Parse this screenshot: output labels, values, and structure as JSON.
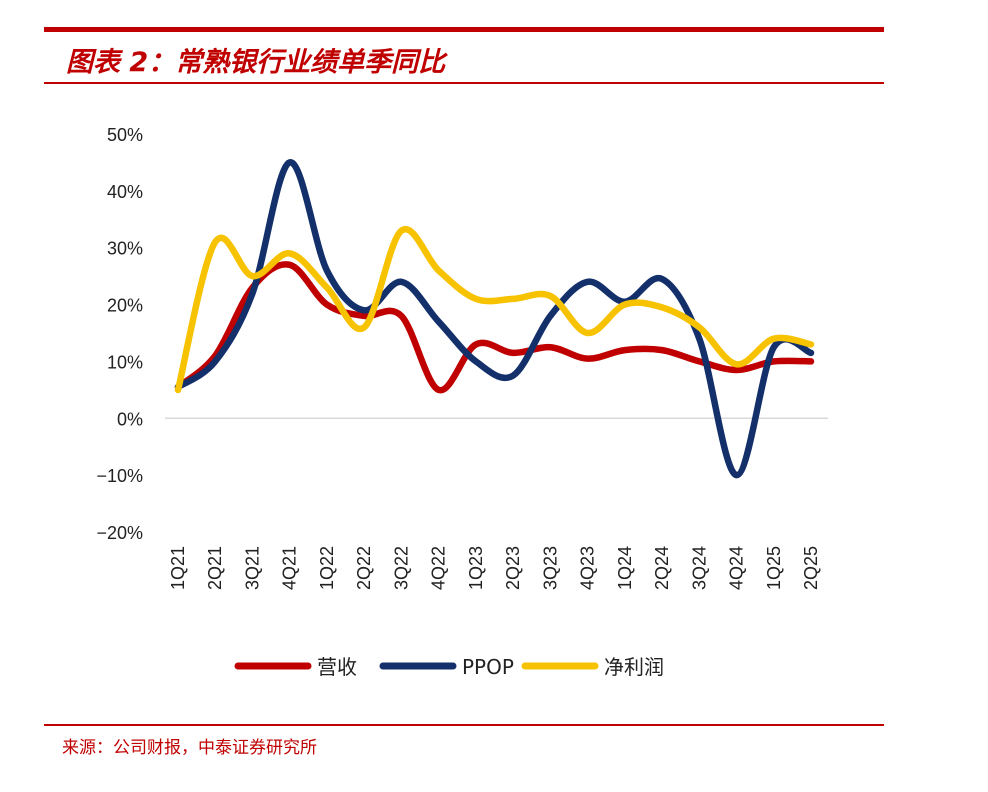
{
  "header": {
    "title": "图表 2：常熟银行业绩单季同比"
  },
  "footer": {
    "source": "来源：公司财报，中泰证券研究所"
  },
  "colors": {
    "rule": "#c00000"
  },
  "chart_data": {
    "type": "line",
    "categories": [
      "1Q21",
      "2Q21",
      "3Q21",
      "4Q21",
      "1Q22",
      "2Q22",
      "3Q22",
      "4Q22",
      "1Q23",
      "2Q23",
      "3Q23",
      "4Q23",
      "1Q24",
      "2Q24",
      "3Q24",
      "4Q24",
      "1Q25",
      "2Q25"
    ],
    "ylim": [
      -20,
      50
    ],
    "yticks": [
      -20,
      -10,
      0,
      10,
      20,
      30,
      40,
      50
    ],
    "ytick_labels": [
      "−20%",
      "−10%",
      "0%",
      "10%",
      "20%",
      "30%",
      "40%",
      "50%"
    ],
    "grid": false,
    "legend_position": "bottom",
    "series": [
      {
        "name": "营收",
        "color": "#c00000",
        "values": [
          5.5,
          11,
          23,
          27,
          20,
          18,
          18,
          5,
          13,
          11.5,
          12.5,
          10.5,
          12,
          12,
          10,
          8.5,
          10,
          10
        ]
      },
      {
        "name": "PPOP",
        "color": "#13306b",
        "values": [
          5.5,
          10,
          22,
          45,
          26,
          19,
          24,
          17,
          10,
          7.5,
          18,
          24,
          20.5,
          24.5,
          14,
          -10,
          12.5,
          11.5
        ]
      },
      {
        "name": "净利润",
        "color": "#f7c200",
        "values": [
          5,
          31,
          25,
          29,
          23,
          16,
          33,
          26,
          21,
          21,
          21.5,
          15,
          20,
          19.5,
          16,
          9.5,
          14,
          13
        ]
      }
    ]
  }
}
